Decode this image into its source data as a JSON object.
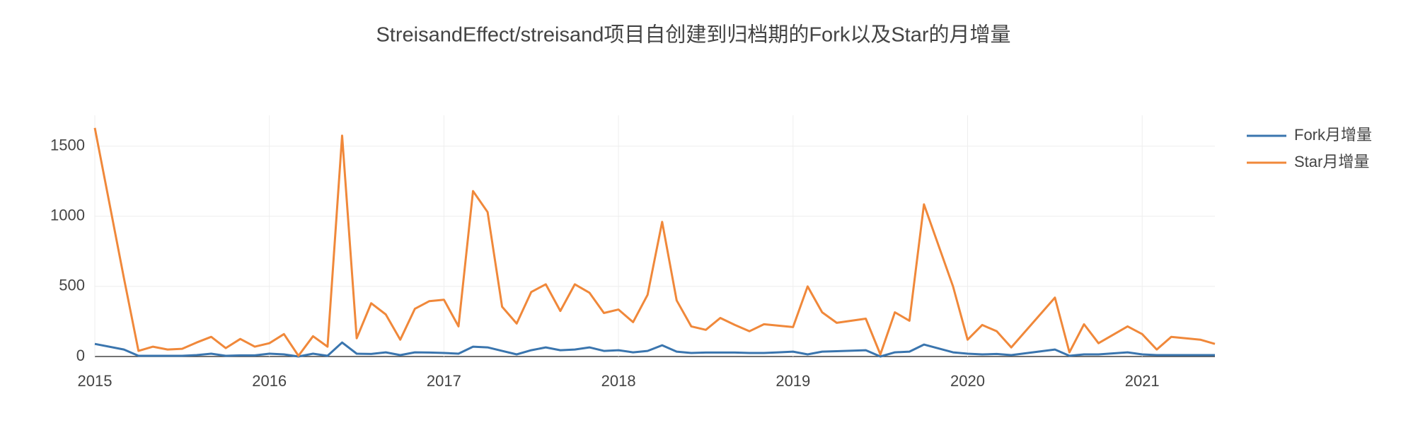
{
  "chart_data": {
    "type": "line",
    "title": "StreisandEffect/streisand项目自创建到归档期的Fork以及Star的月增量",
    "x": [
      "2015-01",
      "2015-03",
      "2015-04",
      "2015-05",
      "2015-06",
      "2015-07",
      "2015-08",
      "2015-09",
      "2015-10",
      "2015-11",
      "2015-12",
      "2016-01",
      "2016-02",
      "2016-03",
      "2016-04",
      "2016-05",
      "2016-06",
      "2016-07",
      "2016-08",
      "2016-09",
      "2016-10",
      "2016-11",
      "2016-12",
      "2017-01",
      "2017-02",
      "2017-03",
      "2017-04",
      "2017-05",
      "2017-06",
      "2017-07",
      "2017-08",
      "2017-09",
      "2017-10",
      "2017-11",
      "2017-12",
      "2018-01",
      "2018-02",
      "2018-03",
      "2018-04",
      "2018-05",
      "2018-06",
      "2018-07",
      "2018-08",
      "2018-09",
      "2018-10",
      "2018-11",
      "2018-12",
      "2019-01",
      "2019-02",
      "2019-03",
      "2019-04",
      "2019-06",
      "2019-07",
      "2019-08",
      "2019-09",
      "2019-10",
      "2019-12",
      "2020-01",
      "2020-02",
      "2020-03",
      "2020-04",
      "2020-07",
      "2020-08",
      "2020-09",
      "2020-10",
      "2020-12",
      "2021-01",
      "2021-02",
      "2021-03",
      "2021-05",
      "2021-06"
    ],
    "series": [
      {
        "name": "Fork月增量",
        "color": "#3a75ae",
        "values": [
          90,
          50,
          5,
          5,
          5,
          5,
          10,
          20,
          5,
          8,
          8,
          20,
          15,
          0,
          20,
          5,
          100,
          20,
          18,
          30,
          10,
          30,
          28,
          25,
          20,
          70,
          65,
          40,
          15,
          45,
          65,
          45,
          50,
          65,
          40,
          45,
          30,
          40,
          80,
          35,
          25,
          28,
          28,
          28,
          25,
          25,
          30,
          35,
          15,
          35,
          38,
          45,
          0,
          30,
          35,
          85,
          30,
          20,
          15,
          18,
          10,
          50,
          5,
          15,
          15,
          30,
          15,
          10,
          10,
          10,
          10
        ]
      },
      {
        "name": "Star月增量",
        "color": "#f0883a",
        "values": [
          1630,
          560,
          40,
          70,
          50,
          55,
          100,
          140,
          60,
          125,
          70,
          95,
          160,
          5,
          145,
          70,
          1575,
          130,
          380,
          300,
          120,
          340,
          395,
          405,
          215,
          1180,
          1030,
          355,
          235,
          460,
          515,
          325,
          515,
          455,
          310,
          335,
          245,
          440,
          960,
          400,
          215,
          190,
          275,
          225,
          180,
          230,
          220,
          210,
          500,
          315,
          240,
          270,
          15,
          315,
          255,
          1085,
          500,
          120,
          225,
          180,
          65,
          420,
          30,
          230,
          95,
          215,
          160,
          50,
          140,
          120,
          90
        ]
      }
    ],
    "xlim": [
      "2015-01",
      "2021-06"
    ],
    "xticks": [
      "2015",
      "2016",
      "2017",
      "2018",
      "2019",
      "2020",
      "2021"
    ],
    "ylim": [
      0,
      1720
    ],
    "yticks": [
      0,
      500,
      1000,
      1500
    ],
    "grid": true,
    "legend": "right"
  }
}
